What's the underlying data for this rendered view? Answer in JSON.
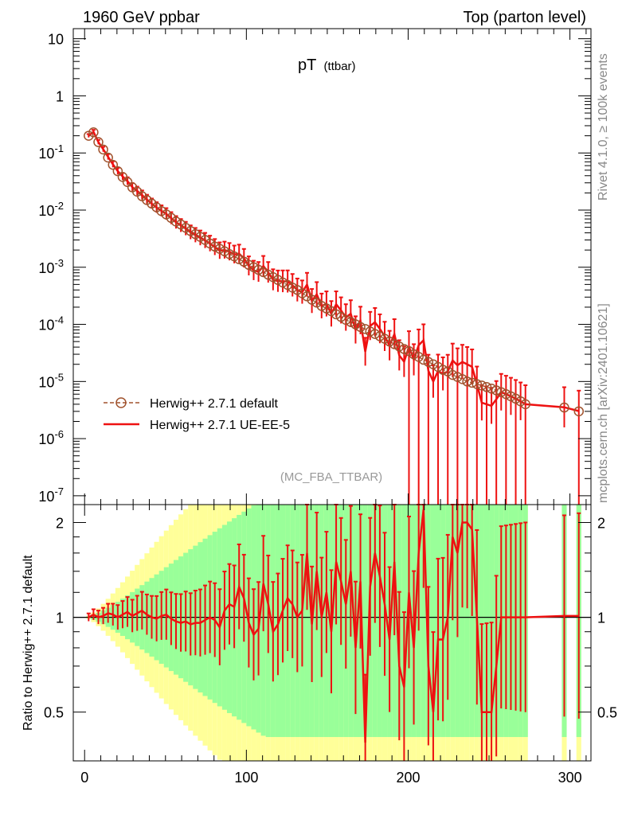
{
  "header": {
    "left": "1960 GeV ppbar",
    "right": "Top (parton level)"
  },
  "side_labels": {
    "rivet": "Rivet 4.1.0, ≥ 100k events",
    "mcplots": "mcplots.cern.ch [arXiv:2401.10621]"
  },
  "chart_data": {
    "type": "line",
    "title": "pT",
    "title_sub": "(ttbar)",
    "analysis_tag": "(MC_FBA_TTBAR)",
    "xlabel": "",
    "ylabel_ratio": "Ratio to Herwig++ 2.7.1 default",
    "xlim": [
      -7,
      313
    ],
    "ylim_main": [
      7e-08,
      15
    ],
    "ylim_ratio": [
      0.35,
      2.28
    ],
    "x_ticks": [
      "0",
      "100",
      "200",
      "300"
    ],
    "y_ticks_main": [
      "10",
      "1",
      "10^-1",
      "10^-2",
      "10^-3",
      "10^-4",
      "10^-5",
      "10^-6",
      "10^-7"
    ],
    "y_ticks_ratio": [
      "0.5",
      "1",
      "2"
    ],
    "legend_position": "bottom-left",
    "series": [
      {
        "name": "Herwig++ 2.7.1 default",
        "style": "dashed-circles",
        "color": "#a0522d",
        "x": [
          2.5,
          5.5,
          8.5,
          11.5,
          14.5,
          17.5,
          20.5,
          23.5,
          26.5,
          29.5,
          32.5,
          35.5,
          38.5,
          41.5,
          44.5,
          47.5,
          50.5,
          53.5,
          56.5,
          59.5,
          62.5,
          65.5,
          68.5,
          71.5,
          74.5,
          77.5,
          80.5,
          83.5,
          86.5,
          89.5,
          92.5,
          95.5,
          98.5,
          101.5,
          104.5,
          107.5,
          110.5,
          113.5,
          116.5,
          119.5,
          122.5,
          125.5,
          128.5,
          131.5,
          134.5,
          137.5,
          140.5,
          143.5,
          146.5,
          149.5,
          152.5,
          155.5,
          158.5,
          161.5,
          164.5,
          167.5,
          170.5,
          173.5,
          176.5,
          179.5,
          182.5,
          185.5,
          188.5,
          191.5,
          194.5,
          197.5,
          200.5,
          203.5,
          206.5,
          209.5,
          212.5,
          215.5,
          218.5,
          221.5,
          224.5,
          227.5,
          230.5,
          233.5,
          236.5,
          239.5,
          242.5,
          245.5,
          248.5,
          251.5,
          254.5,
          257.5,
          260.5,
          263.5,
          266.5,
          269.5,
          272.5,
          296.5,
          305.5
        ],
        "y": [
          0.2,
          0.23,
          0.155,
          0.115,
          0.083,
          0.062,
          0.048,
          0.038,
          0.031,
          0.025,
          0.021,
          0.0175,
          0.015,
          0.013,
          0.0112,
          0.0096,
          0.0084,
          0.0073,
          0.0063,
          0.0056,
          0.0049,
          0.0043,
          0.0038,
          0.0034,
          0.003,
          0.0026,
          0.0023,
          0.0021,
          0.0019,
          0.0017,
          0.00155,
          0.00138,
          0.00125,
          0.0011,
          0.001,
          0.0009,
          0.00082,
          0.00074,
          0.00067,
          0.0006,
          0.00054,
          0.00049,
          0.00044,
          0.0004,
          0.00035,
          0.00031,
          0.00027,
          0.00024,
          0.00021,
          0.00019,
          0.00017,
          0.00015,
          0.000135,
          0.00012,
          0.00011,
          0.0001,
          9e-05,
          8.3e-05,
          7.5e-05,
          6.8e-05,
          6.2e-05,
          5.6e-05,
          5e-05,
          4.5e-05,
          4.1e-05,
          3.7e-05,
          3.4e-05,
          3e-05,
          2.7e-05,
          2.4e-05,
          2.2e-05,
          2e-05,
          1.8e-05,
          1.6e-05,
          1.5e-05,
          1.3e-05,
          1.2e-05,
          1.1e-05,
          1e-05,
          9.5e-06,
          9e-06,
          8.5e-06,
          8e-06,
          7.5e-06,
          7e-06,
          6.5e-06,
          6e-06,
          5.5e-06,
          5e-06,
          4.5e-06,
          4e-06,
          3.5e-06,
          3e-06
        ]
      },
      {
        "name": "Herwig++ 2.7.1 UE-EE-5",
        "style": "solid",
        "color": "#ee1111",
        "x": [
          2.5,
          5.5,
          8.5,
          11.5,
          14.5,
          17.5,
          20.5,
          23.5,
          26.5,
          29.5,
          32.5,
          35.5,
          38.5,
          41.5,
          44.5,
          47.5,
          50.5,
          53.5,
          56.5,
          59.5,
          62.5,
          65.5,
          68.5,
          71.5,
          74.5,
          77.5,
          80.5,
          83.5,
          86.5,
          89.5,
          92.5,
          95.5,
          98.5,
          101.5,
          104.5,
          107.5,
          110.5,
          113.5,
          116.5,
          119.5,
          122.5,
          125.5,
          128.5,
          131.5,
          134.5,
          137.5,
          140.5,
          143.5,
          146.5,
          149.5,
          152.5,
          155.5,
          158.5,
          161.5,
          164.5,
          167.5,
          170.5,
          173.5,
          176.5,
          179.5,
          182.5,
          185.5,
          188.5,
          191.5,
          194.5,
          197.5,
          200.5,
          203.5,
          206.5,
          209.5,
          212.5,
          215.5,
          218.5,
          221.5,
          224.5,
          227.5,
          230.5,
          233.5,
          236.5,
          239.5,
          242.5,
          245.5,
          248.5,
          251.5,
          254.5,
          257.5,
          260.5,
          263.5,
          266.5,
          269.5,
          272.5,
          296.5,
          305.5
        ],
        "y": [
          0.2,
          0.23,
          0.155,
          0.115,
          0.083,
          0.062,
          0.048,
          0.038,
          0.031,
          0.025,
          0.021,
          0.0175,
          0.015,
          0.013,
          0.0112,
          0.0096,
          0.0084,
          0.0073,
          0.0063,
          0.0056,
          0.0049,
          0.0043,
          0.0038,
          0.0034,
          0.003,
          0.0026,
          0.0023,
          0.0021,
          0.0019,
          0.0017,
          0.00155,
          0.00138,
          0.00125,
          0.0011,
          0.001,
          0.0009,
          0.00082,
          0.00074,
          0.00067,
          0.0006,
          0.00054,
          0.00049,
          0.00044,
          0.0004,
          0.00035,
          0.00031,
          0.00027,
          0.00024,
          0.00021,
          0.00019,
          0.00017,
          0.00015,
          0.000135,
          0.00012,
          0.00011,
          0.0001,
          9e-05,
          8.3e-05,
          7.5e-05,
          6.8e-05,
          6.2e-05,
          5.6e-05,
          5e-05,
          4.5e-05,
          4.1e-05,
          3.7e-05,
          3.4e-05,
          3e-05,
          2.7e-05,
          2.4e-05,
          2.2e-05,
          2e-05,
          1.8e-05,
          1.6e-05,
          1.5e-05,
          1.3e-05,
          1.2e-05,
          1.1e-05,
          1e-05,
          9.5e-06,
          9e-06,
          8.5e-06,
          8e-06,
          7.5e-06,
          7e-06,
          6.5e-06,
          6e-06,
          5.5e-06,
          5e-06,
          4.5e-06,
          4e-06,
          3.5e-06,
          3e-06
        ]
      }
    ],
    "ratio": {
      "x": [
        2.5,
        5.5,
        8.5,
        11.5,
        14.5,
        17.5,
        20.5,
        23.5,
        26.5,
        29.5,
        32.5,
        35.5,
        38.5,
        41.5,
        44.5,
        47.5,
        50.5,
        53.5,
        56.5,
        59.5,
        62.5,
        65.5,
        68.5,
        71.5,
        74.5,
        77.5,
        80.5,
        83.5,
        86.5,
        89.5,
        92.5,
        95.5,
        98.5,
        101.5,
        104.5,
        107.5,
        110.5,
        113.5,
        116.5,
        119.5,
        122.5,
        125.5,
        128.5,
        131.5,
        134.5,
        137.5,
        140.5,
        143.5,
        146.5,
        149.5,
        152.5,
        155.5,
        158.5,
        161.5,
        164.5,
        167.5,
        170.5,
        173.5,
        176.5,
        179.5,
        182.5,
        185.5,
        188.5,
        191.5,
        194.5,
        197.5,
        200.5,
        203.5,
        206.5,
        209.5,
        212.5,
        215.5,
        218.5,
        221.5,
        224.5,
        227.5,
        230.5,
        233.5,
        236.5,
        239.5,
        242.5,
        245.5,
        248.5,
        251.5,
        254.5,
        257.5,
        260.5,
        263.5,
        266.5,
        269.5,
        272.5,
        296.5,
        305.5
      ],
      "values": [
        1.0,
        1.02,
        1.0,
        1.01,
        1.03,
        1.02,
        1.0,
        1.02,
        1.04,
        1.01,
        1.03,
        1.05,
        1.02,
        1.0,
        0.99,
        1.01,
        1.02,
        0.99,
        0.97,
        0.96,
        0.97,
        0.95,
        0.96,
        0.96,
        0.98,
        1.0,
        0.98,
        0.93,
        1.05,
        1.1,
        1.08,
        1.25,
        1.15,
        0.96,
        0.88,
        0.92,
        1.28,
        1.1,
        0.9,
        0.95,
        1.05,
        1.15,
        1.1,
        1.0,
        1.05,
        1.6,
        0.95,
        1.4,
        1.0,
        1.2,
        0.9,
        1.5,
        1.3,
        1.1,
        1.4,
        0.8,
        1.3,
        0.4,
        1.25,
        1.6,
        1.35,
        1.1,
        0.85,
        1.5,
        0.7,
        0.6,
        1.2,
        0.8,
        1.6,
        2.2,
        0.7,
        0.5,
        0.85,
        0.85,
        1.0,
        1.8,
        1.6,
        2.0,
        2.0,
        1.9,
        1.0,
        0.5,
        0.5,
        0.5,
        0.7,
        1.0,
        1.0,
        1.0,
        1.0,
        1.0,
        1.0,
        1.01,
        1.01
      ]
    }
  }
}
